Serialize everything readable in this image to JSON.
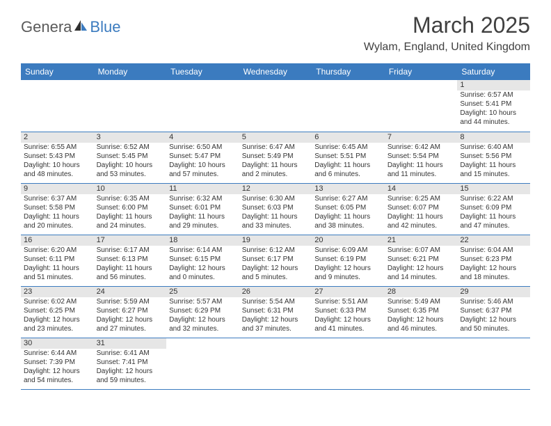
{
  "brand": {
    "part1": "Genera",
    "part2": "Blue"
  },
  "title": "March 2025",
  "location": "Wylam, England, United Kingdom",
  "colors": {
    "header_bg": "#3b7bbf",
    "header_text": "#ffffff",
    "daynum_bg": "#e6e6e6",
    "text": "#333333",
    "border": "#3b7bbf"
  },
  "day_headers": [
    "Sunday",
    "Monday",
    "Tuesday",
    "Wednesday",
    "Thursday",
    "Friday",
    "Saturday"
  ],
  "weeks": [
    [
      null,
      null,
      null,
      null,
      null,
      null,
      {
        "n": "1",
        "sr": "Sunrise: 6:57 AM",
        "ss": "Sunset: 5:41 PM",
        "d1": "Daylight: 10 hours",
        "d2": "and 44 minutes."
      }
    ],
    [
      {
        "n": "2",
        "sr": "Sunrise: 6:55 AM",
        "ss": "Sunset: 5:43 PM",
        "d1": "Daylight: 10 hours",
        "d2": "and 48 minutes."
      },
      {
        "n": "3",
        "sr": "Sunrise: 6:52 AM",
        "ss": "Sunset: 5:45 PM",
        "d1": "Daylight: 10 hours",
        "d2": "and 53 minutes."
      },
      {
        "n": "4",
        "sr": "Sunrise: 6:50 AM",
        "ss": "Sunset: 5:47 PM",
        "d1": "Daylight: 10 hours",
        "d2": "and 57 minutes."
      },
      {
        "n": "5",
        "sr": "Sunrise: 6:47 AM",
        "ss": "Sunset: 5:49 PM",
        "d1": "Daylight: 11 hours",
        "d2": "and 2 minutes."
      },
      {
        "n": "6",
        "sr": "Sunrise: 6:45 AM",
        "ss": "Sunset: 5:51 PM",
        "d1": "Daylight: 11 hours",
        "d2": "and 6 minutes."
      },
      {
        "n": "7",
        "sr": "Sunrise: 6:42 AM",
        "ss": "Sunset: 5:54 PM",
        "d1": "Daylight: 11 hours",
        "d2": "and 11 minutes."
      },
      {
        "n": "8",
        "sr": "Sunrise: 6:40 AM",
        "ss": "Sunset: 5:56 PM",
        "d1": "Daylight: 11 hours",
        "d2": "and 15 minutes."
      }
    ],
    [
      {
        "n": "9",
        "sr": "Sunrise: 6:37 AM",
        "ss": "Sunset: 5:58 PM",
        "d1": "Daylight: 11 hours",
        "d2": "and 20 minutes."
      },
      {
        "n": "10",
        "sr": "Sunrise: 6:35 AM",
        "ss": "Sunset: 6:00 PM",
        "d1": "Daylight: 11 hours",
        "d2": "and 24 minutes."
      },
      {
        "n": "11",
        "sr": "Sunrise: 6:32 AM",
        "ss": "Sunset: 6:01 PM",
        "d1": "Daylight: 11 hours",
        "d2": "and 29 minutes."
      },
      {
        "n": "12",
        "sr": "Sunrise: 6:30 AM",
        "ss": "Sunset: 6:03 PM",
        "d1": "Daylight: 11 hours",
        "d2": "and 33 minutes."
      },
      {
        "n": "13",
        "sr": "Sunrise: 6:27 AM",
        "ss": "Sunset: 6:05 PM",
        "d1": "Daylight: 11 hours",
        "d2": "and 38 minutes."
      },
      {
        "n": "14",
        "sr": "Sunrise: 6:25 AM",
        "ss": "Sunset: 6:07 PM",
        "d1": "Daylight: 11 hours",
        "d2": "and 42 minutes."
      },
      {
        "n": "15",
        "sr": "Sunrise: 6:22 AM",
        "ss": "Sunset: 6:09 PM",
        "d1": "Daylight: 11 hours",
        "d2": "and 47 minutes."
      }
    ],
    [
      {
        "n": "16",
        "sr": "Sunrise: 6:20 AM",
        "ss": "Sunset: 6:11 PM",
        "d1": "Daylight: 11 hours",
        "d2": "and 51 minutes."
      },
      {
        "n": "17",
        "sr": "Sunrise: 6:17 AM",
        "ss": "Sunset: 6:13 PM",
        "d1": "Daylight: 11 hours",
        "d2": "and 56 minutes."
      },
      {
        "n": "18",
        "sr": "Sunrise: 6:14 AM",
        "ss": "Sunset: 6:15 PM",
        "d1": "Daylight: 12 hours",
        "d2": "and 0 minutes."
      },
      {
        "n": "19",
        "sr": "Sunrise: 6:12 AM",
        "ss": "Sunset: 6:17 PM",
        "d1": "Daylight: 12 hours",
        "d2": "and 5 minutes."
      },
      {
        "n": "20",
        "sr": "Sunrise: 6:09 AM",
        "ss": "Sunset: 6:19 PM",
        "d1": "Daylight: 12 hours",
        "d2": "and 9 minutes."
      },
      {
        "n": "21",
        "sr": "Sunrise: 6:07 AM",
        "ss": "Sunset: 6:21 PM",
        "d1": "Daylight: 12 hours",
        "d2": "and 14 minutes."
      },
      {
        "n": "22",
        "sr": "Sunrise: 6:04 AM",
        "ss": "Sunset: 6:23 PM",
        "d1": "Daylight: 12 hours",
        "d2": "and 18 minutes."
      }
    ],
    [
      {
        "n": "23",
        "sr": "Sunrise: 6:02 AM",
        "ss": "Sunset: 6:25 PM",
        "d1": "Daylight: 12 hours",
        "d2": "and 23 minutes."
      },
      {
        "n": "24",
        "sr": "Sunrise: 5:59 AM",
        "ss": "Sunset: 6:27 PM",
        "d1": "Daylight: 12 hours",
        "d2": "and 27 minutes."
      },
      {
        "n": "25",
        "sr": "Sunrise: 5:57 AM",
        "ss": "Sunset: 6:29 PM",
        "d1": "Daylight: 12 hours",
        "d2": "and 32 minutes."
      },
      {
        "n": "26",
        "sr": "Sunrise: 5:54 AM",
        "ss": "Sunset: 6:31 PM",
        "d1": "Daylight: 12 hours",
        "d2": "and 37 minutes."
      },
      {
        "n": "27",
        "sr": "Sunrise: 5:51 AM",
        "ss": "Sunset: 6:33 PM",
        "d1": "Daylight: 12 hours",
        "d2": "and 41 minutes."
      },
      {
        "n": "28",
        "sr": "Sunrise: 5:49 AM",
        "ss": "Sunset: 6:35 PM",
        "d1": "Daylight: 12 hours",
        "d2": "and 46 minutes."
      },
      {
        "n": "29",
        "sr": "Sunrise: 5:46 AM",
        "ss": "Sunset: 6:37 PM",
        "d1": "Daylight: 12 hours",
        "d2": "and 50 minutes."
      }
    ],
    [
      {
        "n": "30",
        "sr": "Sunrise: 6:44 AM",
        "ss": "Sunset: 7:39 PM",
        "d1": "Daylight: 12 hours",
        "d2": "and 54 minutes."
      },
      {
        "n": "31",
        "sr": "Sunrise: 6:41 AM",
        "ss": "Sunset: 7:41 PM",
        "d1": "Daylight: 12 hours",
        "d2": "and 59 minutes."
      },
      null,
      null,
      null,
      null,
      null
    ]
  ]
}
